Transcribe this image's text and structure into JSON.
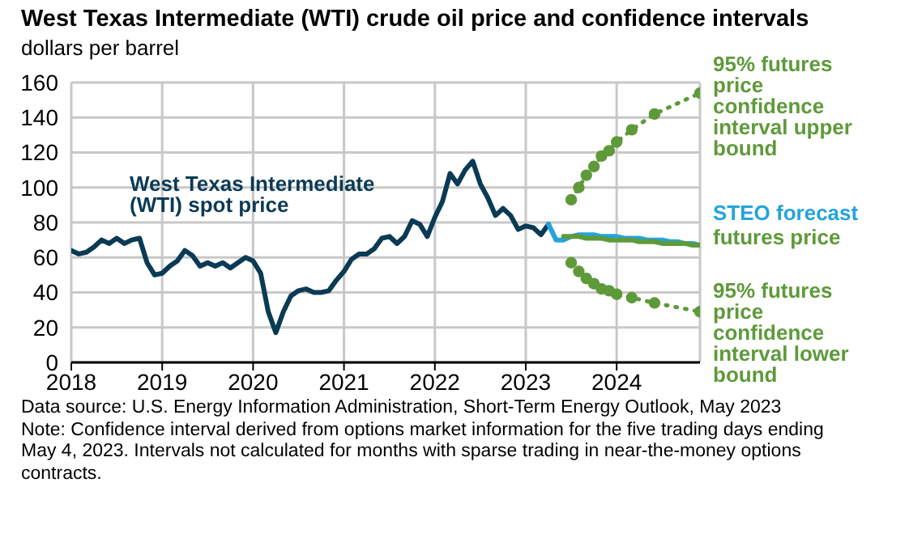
{
  "chart_data": {
    "type": "line",
    "title": "West Texas Intermediate (WTI) crude oil price and confidence intervals",
    "ylabel": "dollars per barrel",
    "xlim": [
      "2018-01",
      "2024-12"
    ],
    "xticks": [
      "2018",
      "2019",
      "2020",
      "2021",
      "2022",
      "2023",
      "2024"
    ],
    "ylim": [
      0,
      160
    ],
    "yticks": [
      0,
      20,
      40,
      60,
      80,
      100,
      120,
      140,
      160
    ],
    "grid": true,
    "series": [
      {
        "name": "West Texas Intermediate (WTI) spot price",
        "color": "#0b3a55",
        "marker": "none",
        "line_style": "solid",
        "x": [
          "2018-01",
          "2018-02",
          "2018-03",
          "2018-04",
          "2018-05",
          "2018-06",
          "2018-07",
          "2018-08",
          "2018-09",
          "2018-10",
          "2018-11",
          "2018-12",
          "2019-01",
          "2019-02",
          "2019-03",
          "2019-04",
          "2019-05",
          "2019-06",
          "2019-07",
          "2019-08",
          "2019-09",
          "2019-10",
          "2019-11",
          "2019-12",
          "2020-01",
          "2020-02",
          "2020-03",
          "2020-04",
          "2020-05",
          "2020-06",
          "2020-07",
          "2020-08",
          "2020-09",
          "2020-10",
          "2020-11",
          "2020-12",
          "2021-01",
          "2021-02",
          "2021-03",
          "2021-04",
          "2021-05",
          "2021-06",
          "2021-07",
          "2021-08",
          "2021-09",
          "2021-10",
          "2021-11",
          "2021-12",
          "2022-01",
          "2022-02",
          "2022-03",
          "2022-04",
          "2022-05",
          "2022-06",
          "2022-07",
          "2022-08",
          "2022-09",
          "2022-10",
          "2022-11",
          "2022-12",
          "2023-01",
          "2023-02",
          "2023-03",
          "2023-04"
        ],
        "values": [
          64,
          62,
          63,
          66,
          70,
          68,
          71,
          68,
          70,
          71,
          57,
          50,
          51,
          55,
          58,
          64,
          61,
          55,
          57,
          55,
          57,
          54,
          57,
          60,
          58,
          51,
          29,
          17,
          29,
          38,
          41,
          42,
          40,
          40,
          41,
          47,
          52,
          59,
          62,
          62,
          65,
          71,
          72,
          68,
          72,
          81,
          79,
          72,
          83,
          92,
          108,
          102,
          110,
          115,
          102,
          94,
          84,
          88,
          84,
          76,
          78,
          77,
          73,
          79
        ]
      },
      {
        "name": "STEO forecast",
        "color": "#25a3dc",
        "marker": "none",
        "line_style": "solid",
        "x": [
          "2023-04",
          "2023-05",
          "2023-06",
          "2023-07",
          "2023-08",
          "2023-09",
          "2023-10",
          "2023-11",
          "2023-12",
          "2024-01",
          "2024-02",
          "2024-03",
          "2024-04",
          "2024-05",
          "2024-06",
          "2024-07",
          "2024-08",
          "2024-09",
          "2024-10",
          "2024-11",
          "2024-12"
        ],
        "values": [
          79,
          70,
          70,
          72,
          73,
          73,
          73,
          72,
          72,
          72,
          71,
          71,
          71,
          70,
          70,
          70,
          69,
          69,
          68,
          68,
          67
        ]
      },
      {
        "name": "futures price",
        "color": "#5e9a3a",
        "marker": "none",
        "line_style": "solid",
        "x": [
          "2023-06",
          "2023-07",
          "2023-08",
          "2023-09",
          "2023-10",
          "2023-11",
          "2023-12",
          "2024-01",
          "2024-02",
          "2024-03",
          "2024-04",
          "2024-05",
          "2024-06",
          "2024-07",
          "2024-08",
          "2024-09",
          "2024-10",
          "2024-11",
          "2024-12"
        ],
        "values": [
          72,
          72,
          72,
          71,
          71,
          71,
          70,
          70,
          70,
          70,
          69,
          69,
          69,
          68,
          68,
          68,
          68,
          67,
          67
        ]
      },
      {
        "name": "95% futures price confidence interval upper bound",
        "color": "#5e9a3a",
        "marker": "circle",
        "line_style": "dotted",
        "x": [
          "2023-07",
          "2023-08",
          "2023-09",
          "2023-10",
          "2023-11",
          "2023-12",
          "2024-01",
          "2024-03",
          "2024-06",
          "2024-12"
        ],
        "values": [
          93,
          100,
          107,
          112,
          118,
          121,
          126,
          133,
          142,
          154
        ]
      },
      {
        "name": "95% futures price confidence interval lower bound",
        "color": "#5e9a3a",
        "marker": "circle",
        "line_style": "dotted",
        "x": [
          "2023-07",
          "2023-08",
          "2023-09",
          "2023-10",
          "2023-11",
          "2023-12",
          "2024-01",
          "2024-03",
          "2024-06",
          "2024-12"
        ],
        "values": [
          57,
          52,
          48,
          45,
          42,
          41,
          39,
          37,
          34,
          29
        ]
      }
    ],
    "annotations": [
      "Data source: U.S. Energy Information Administration, Short-Term Energy Outlook, May 2023",
      "Note: Confidence interval derived from options market information for the five trading days ending May 4, 2023. Intervals not calculated for months with sparse trading in near-the-money options contracts."
    ]
  }
}
